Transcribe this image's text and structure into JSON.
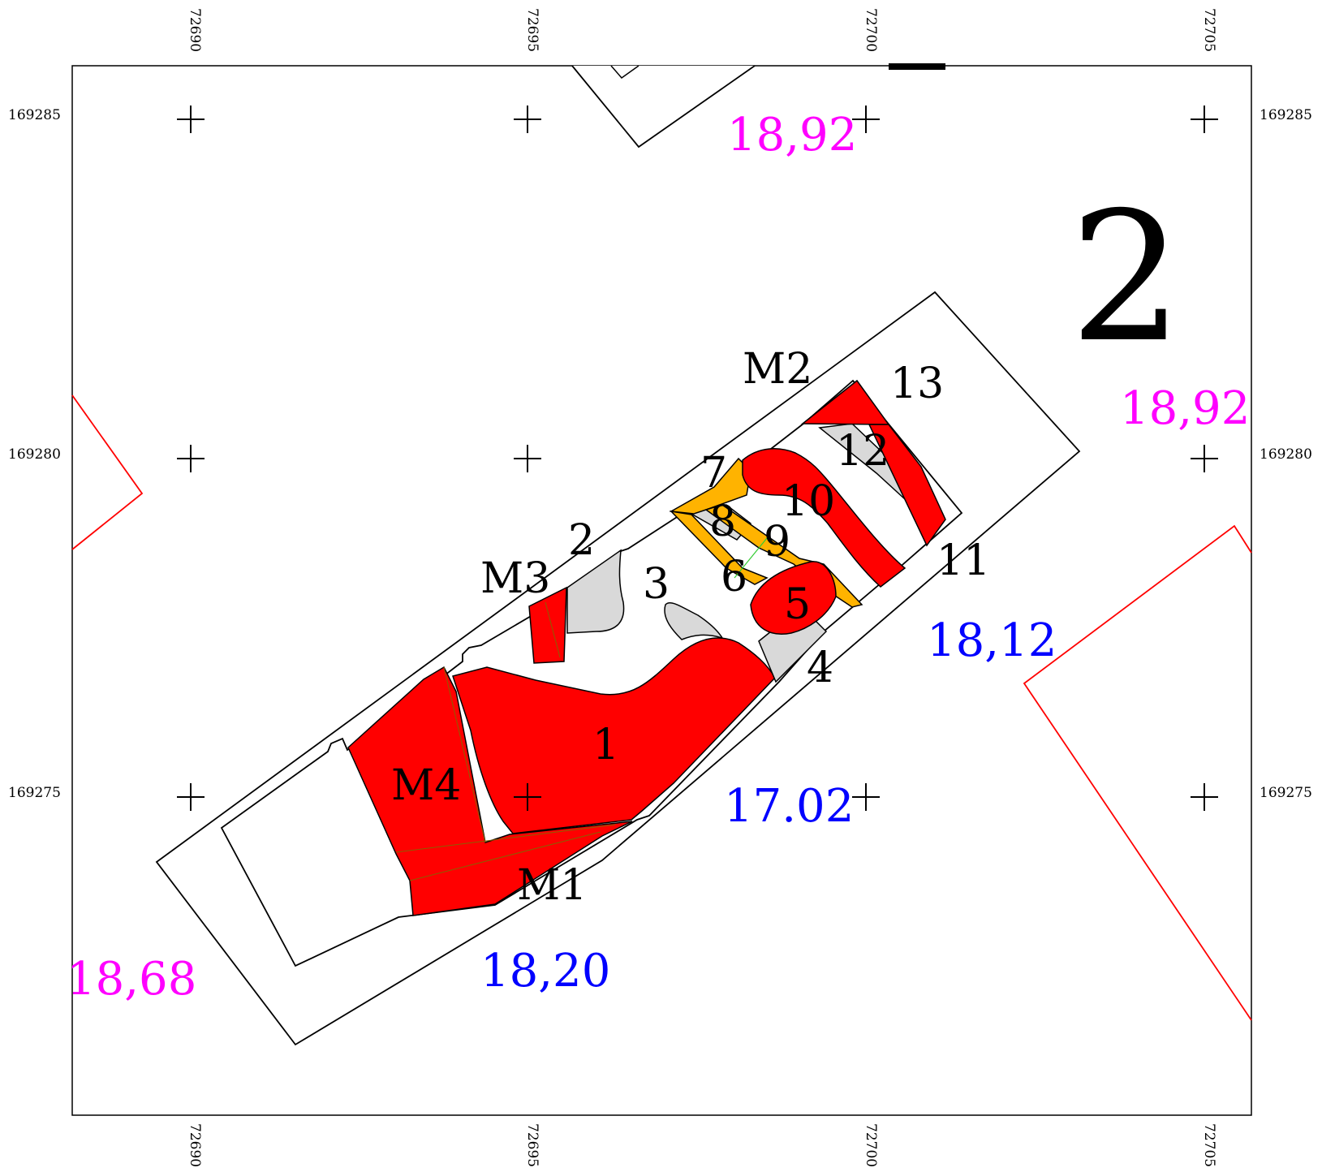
{
  "grid": {
    "x_labels": [
      "72690",
      "72695",
      "72700",
      "72705"
    ],
    "y_labels": [
      "169285",
      "169280",
      "169275"
    ]
  },
  "sheet_number": "2",
  "features": {
    "1": "1",
    "2": "2",
    "3": "3",
    "4": "4",
    "5": "5",
    "6": "6",
    "7": "7",
    "8": "8",
    "9": "9",
    "10": "10",
    "11": "11",
    "12": "12",
    "13": "13",
    "M1": "M1",
    "M2": "M2",
    "M3": "M3",
    "M4": "M4"
  },
  "elevations": {
    "top": "18,92",
    "right": "18,92",
    "left_bottom": "18,68",
    "bottom": "18,20",
    "center": "17.02",
    "right_mid": "18,12"
  },
  "colors": {
    "wall_fill": "#ff0000",
    "stone_fill": "#d9d9d9",
    "timber_fill": "#ffb300",
    "elevation_top": "#ff00ff",
    "elevation_base": "#0000ff"
  }
}
